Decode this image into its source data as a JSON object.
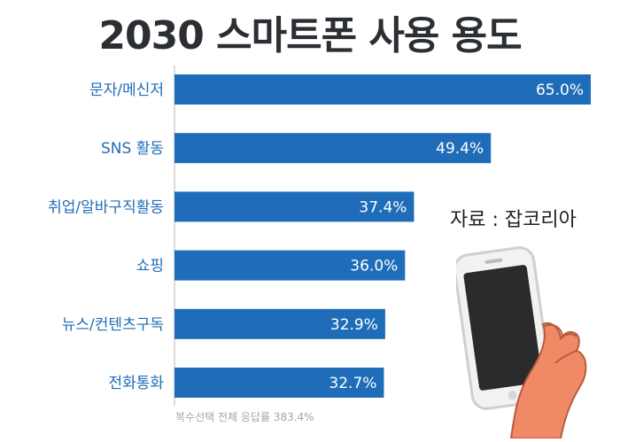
{
  "header": {
    "title": "2030 스마트폰 사용 용도"
  },
  "source": "자료 : 잡코리아",
  "footnote": "복수선택 전체 응답률 383.4%",
  "colors": {
    "bar": "#1f6db8",
    "axis": "#cfcfcf",
    "label": "#1f6db8",
    "title": "#2b2f33"
  },
  "icons": {
    "phone": "smartphone-hand-icon"
  },
  "chart_data": {
    "type": "bar",
    "orientation": "horizontal",
    "title": "2030 스마트폰 사용 용도",
    "categories": [
      "문자/메신저",
      "SNS 활동",
      "취업/알바구직활동",
      "쇼핑",
      "뉴스/컨텐츠구독",
      "전화통화"
    ],
    "values": [
      65.0,
      49.4,
      37.4,
      36.0,
      32.9,
      32.7
    ],
    "value_labels": [
      "65.0%",
      "49.4%",
      "37.4%",
      "36.0%",
      "32.9%",
      "32.7%"
    ],
    "xlim": [
      0,
      65.0
    ],
    "grid": false,
    "legend": "none"
  }
}
